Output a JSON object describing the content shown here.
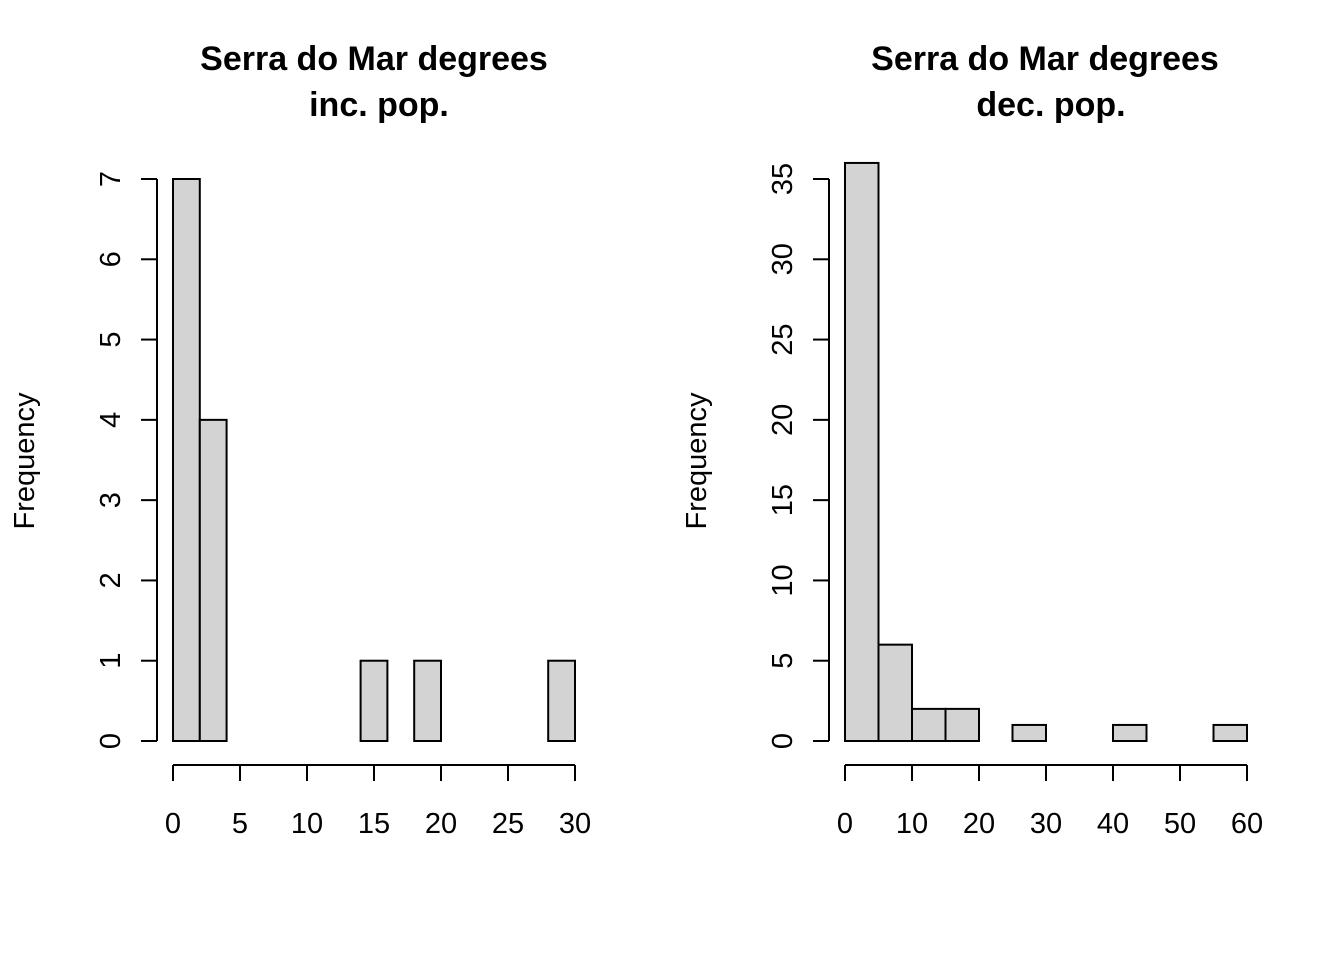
{
  "chart_data": [
    {
      "type": "bar",
      "histogram": true,
      "title": "Serra do Mar degrees",
      "subtitle": "inc. pop.",
      "xlabel": "",
      "ylabel": "Frequency",
      "bin_edges": [
        0,
        2,
        4,
        6,
        8,
        10,
        12,
        14,
        16,
        18,
        20,
        22,
        24,
        26,
        28,
        30
      ],
      "values": [
        7,
        4,
        0,
        0,
        0,
        0,
        0,
        1,
        0,
        1,
        0,
        0,
        0,
        0,
        1
      ],
      "xlim": [
        0,
        30
      ],
      "ylim": [
        0,
        7
      ],
      "x_ticks": [
        0,
        5,
        10,
        15,
        20,
        25,
        30
      ],
      "x_tick_labels": [
        "0",
        "5",
        "10",
        "15",
        "20",
        "25",
        "30"
      ],
      "y_ticks": [
        0,
        1,
        2,
        3,
        4,
        5,
        6,
        7
      ],
      "y_tick_labels": [
        "0",
        "1",
        "2",
        "3",
        "4",
        "5",
        "6",
        "7"
      ],
      "grid": false,
      "bar_color": "#d3d3d3",
      "edge_color": "#000000"
    },
    {
      "type": "bar",
      "histogram": true,
      "title": "Serra do Mar degrees",
      "subtitle": "dec. pop.",
      "xlabel": "",
      "ylabel": "Frequency",
      "bin_edges": [
        0,
        5,
        10,
        15,
        20,
        25,
        30,
        35,
        40,
        45,
        50,
        55,
        60
      ],
      "values": [
        36,
        6,
        2,
        2,
        0,
        1,
        0,
        0,
        1,
        0,
        0,
        1
      ],
      "xlim": [
        0,
        60
      ],
      "ylim": [
        0,
        35
      ],
      "x_ticks": [
        0,
        10,
        20,
        30,
        40,
        50,
        60
      ],
      "x_tick_labels": [
        "0",
        "10",
        "20",
        "30",
        "40",
        "50",
        "60"
      ],
      "y_ticks": [
        0,
        5,
        10,
        15,
        20,
        25,
        30,
        35
      ],
      "y_tick_labels": [
        "0",
        "5",
        "10",
        "15",
        "20",
        "25",
        "30",
        "35"
      ],
      "grid": false,
      "bar_color": "#d3d3d3",
      "edge_color": "#000000"
    }
  ]
}
